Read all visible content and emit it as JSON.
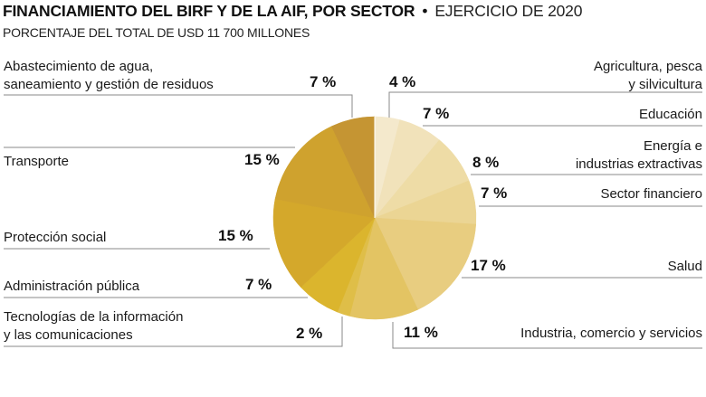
{
  "header": {
    "title": "FINANCIAMIENTO DEL BIRF Y DE LA AIF, POR SECTOR",
    "separator": "•",
    "period": "EJERCICIO DE 2020",
    "subtitle": "PORCENTAJE DEL TOTAL DE USD 11 700 MILLONES"
  },
  "chart_data": {
    "type": "pie",
    "title": "FINANCIAMIENTO DEL BIRF Y DE LA AIF, POR SECTOR",
    "subtitle": "PORCENTAJE DEL TOTAL DE USD 11 700 MILLONES",
    "period": "EJERCICIO DE 2020",
    "total": "USD 11 700 millones",
    "unit": "%",
    "start": "top",
    "direction": "clockwise",
    "slices": [
      {
        "label": "Agricultura, pesca y silvicultura",
        "lines": [
          "Agricultura, pesca",
          "y silvicultura"
        ],
        "value": 4,
        "pct_label": "4 %",
        "color": "#f4e9cc"
      },
      {
        "label": "Educación",
        "lines": [
          "Educación"
        ],
        "value": 7,
        "pct_label": "7 %",
        "color": "#f1e2ba"
      },
      {
        "label": "Energía e industrias extractivas",
        "lines": [
          "Energía e",
          "industrias extractivas"
        ],
        "value": 8,
        "pct_label": "8 %",
        "color": "#eedca6"
      },
      {
        "label": "Sector financiero",
        "lines": [
          "Sector financiero"
        ],
        "value": 7,
        "pct_label": "7 %",
        "color": "#ebd594"
      },
      {
        "label": "Salud",
        "lines": [
          "Salud"
        ],
        "value": 17,
        "pct_label": "17 %",
        "color": "#e8cd80"
      },
      {
        "label": "Industria, comercio y servicios",
        "lines": [
          "Industria, comercio y servicios"
        ],
        "value": 11,
        "pct_label": "11 %",
        "color": "#e3c463"
      },
      {
        "label": "Tecnologías de la información y las comunicaciones",
        "lines": [
          "Tecnologías de la información",
          "y las comunicaciones"
        ],
        "value": 2,
        "pct_label": "2 %",
        "color": "#dfbe48"
      },
      {
        "label": "Administración pública",
        "lines": [
          "Administración pública"
        ],
        "value": 7,
        "pct_label": "7 %",
        "color": "#dbb52d"
      },
      {
        "label": "Protección social",
        "lines": [
          "Protección social"
        ],
        "value": 15,
        "pct_label": "15 %",
        "color": "#d4a82b"
      },
      {
        "label": "Transporte",
        "lines": [
          "Transporte"
        ],
        "value": 15,
        "pct_label": "15 %",
        "color": "#cfa22e"
      },
      {
        "label": "Abastecimiento de agua, saneamiento y gestión de residuos",
        "lines": [
          "Abastecimiento de agua,",
          "saneamiento y gestión de residuos"
        ],
        "value": 7,
        "pct_label": "7 %",
        "color": "#c59533"
      }
    ]
  }
}
